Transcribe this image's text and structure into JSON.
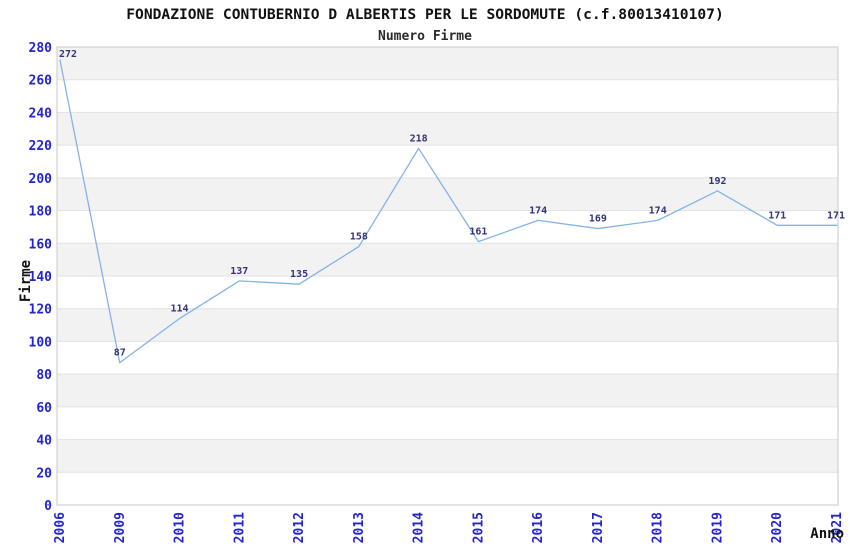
{
  "chart_data": {
    "type": "line",
    "title": "FONDAZIONE CONTUBERNIO D ALBERTIS PER LE SORDOMUTE (c.f.80013410107)",
    "subtitle": "Numero Firme",
    "xlabel": "Anno",
    "ylabel": "Firme",
    "categories": [
      "2006",
      "2009",
      "2010",
      "2011",
      "2012",
      "2013",
      "2014",
      "2015",
      "2016",
      "2017",
      "2018",
      "2019",
      "2020",
      "2021"
    ],
    "values": [
      272,
      87,
      114,
      137,
      135,
      158,
      218,
      161,
      174,
      169,
      174,
      192,
      171,
      171
    ],
    "ylim": [
      0,
      280
    ],
    "ytick_step": 20,
    "legend": "none",
    "grid": "horizontal-bands",
    "colors": {
      "line": "#85b3e8",
      "tick_label": "#2424cc",
      "data_label": "#333377",
      "band_alt": "#f2f2f2",
      "band_main": "#ffffff",
      "gridline": "#e2e2e2",
      "border": "#c9c9c9",
      "background": "#ffffff"
    }
  }
}
